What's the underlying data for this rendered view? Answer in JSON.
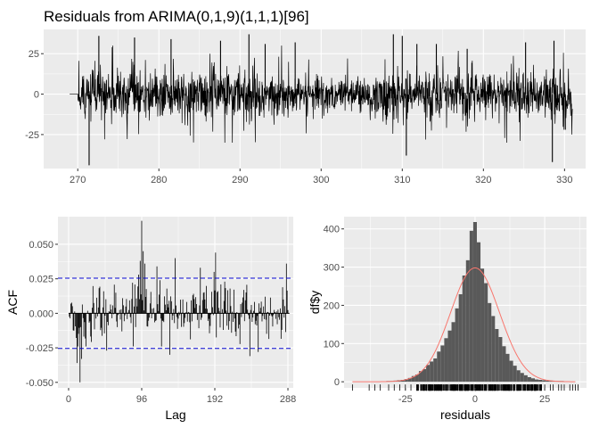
{
  "chart_data": [
    {
      "type": "line",
      "title": "Residuals from ARIMA(0,1,9)(1,1,1)[96]",
      "xlabel": "",
      "ylabel": "",
      "xlim": [
        265.8,
        332.6
      ],
      "ylim": [
        -46,
        40
      ],
      "x_ticks": [
        270,
        280,
        290,
        300,
        310,
        320,
        330
      ],
      "y_ticks": [
        -25,
        0,
        25
      ],
      "x_range": [
        269.0,
        331.0
      ],
      "flat_until": 270.0,
      "grid": true,
      "series_color": "#000000",
      "spikes": [
        {
          "x": 271.4,
          "y": -44
        },
        {
          "x": 272.6,
          "y": 36
        },
        {
          "x": 277.0,
          "y": 35
        },
        {
          "x": 281.5,
          "y": 34
        },
        {
          "x": 287.6,
          "y": 33
        },
        {
          "x": 291.1,
          "y": 37
        },
        {
          "x": 293.1,
          "y": 31
        },
        {
          "x": 296.8,
          "y": 32
        },
        {
          "x": 308.9,
          "y": 37
        },
        {
          "x": 310.0,
          "y": 36
        },
        {
          "x": 310.5,
          "y": -38
        },
        {
          "x": 311.8,
          "y": 31
        },
        {
          "x": 314.2,
          "y": 31
        },
        {
          "x": 318.0,
          "y": 28
        },
        {
          "x": 325.2,
          "y": 32
        },
        {
          "x": 328.5,
          "y": -42
        },
        {
          "x": 328.7,
          "y": 33
        },
        {
          "x": 330.1,
          "y": -22
        }
      ]
    },
    {
      "type": "bar",
      "title": "",
      "xlabel": "Lag",
      "ylabel": "ACF",
      "xlim": [
        -14,
        295
      ],
      "ylim": [
        -0.054,
        0.07
      ],
      "x_ticks": [
        0,
        96,
        192,
        288
      ],
      "y_ticks": [
        -0.05,
        -0.025,
        0.0,
        0.025,
        0.05
      ],
      "y_tick_labels": [
        "-0.050",
        "-0.025",
        "0.000",
        "0.025",
        "0.050"
      ],
      "max_lag": 288,
      "confidence_band": 0.0254,
      "band_color": "#0000cc",
      "grid": true,
      "notable_lags": [
        {
          "lag": 11,
          "acf": -0.036
        },
        {
          "lag": 15,
          "acf": -0.05
        },
        {
          "lag": 17,
          "acf": -0.033
        },
        {
          "lag": 50,
          "acf": -0.027
        },
        {
          "lag": 92,
          "acf": 0.028
        },
        {
          "lag": 94,
          "acf": 0.038
        },
        {
          "lag": 96,
          "acf": 0.067
        },
        {
          "lag": 98,
          "acf": 0.045
        },
        {
          "lag": 100,
          "acf": 0.036
        },
        {
          "lag": 116,
          "acf": 0.034
        },
        {
          "lag": 133,
          "acf": -0.03
        },
        {
          "lag": 140,
          "acf": 0.04
        },
        {
          "lag": 173,
          "acf": 0.033
        },
        {
          "lag": 191,
          "acf": 0.03
        },
        {
          "lag": 193,
          "acf": 0.044
        },
        {
          "lag": 238,
          "acf": -0.031
        },
        {
          "lag": 249,
          "acf": -0.028
        },
        {
          "lag": 286,
          "acf": 0.036
        }
      ]
    },
    {
      "type": "histogram",
      "title": "",
      "xlabel": "residuals",
      "ylabel": "df$y",
      "xlim": [
        -47,
        40
      ],
      "ylim": [
        -16,
        432
      ],
      "x_ticks": [
        -25,
        0,
        25
      ],
      "y_ticks": [
        0,
        100,
        200,
        300,
        400
      ],
      "bin_width": 1.3,
      "bar_color": "#595959",
      "density_curve": {
        "mean": 0,
        "sd": 8.8,
        "peak": 298,
        "color": "#f8766d"
      },
      "bins": [
        {
          "x": -31.2,
          "count": 2
        },
        {
          "x": -29.9,
          "count": 2
        },
        {
          "x": -28.6,
          "count": 3
        },
        {
          "x": -27.3,
          "count": 4
        },
        {
          "x": -26.0,
          "count": 5
        },
        {
          "x": -24.7,
          "count": 7
        },
        {
          "x": -23.4,
          "count": 10
        },
        {
          "x": -22.1,
          "count": 15
        },
        {
          "x": -20.8,
          "count": 19
        },
        {
          "x": -19.5,
          "count": 28
        },
        {
          "x": -18.2,
          "count": 33
        },
        {
          "x": -16.9,
          "count": 44
        },
        {
          "x": -15.6,
          "count": 53
        },
        {
          "x": -14.3,
          "count": 61
        },
        {
          "x": -13.0,
          "count": 79
        },
        {
          "x": -11.7,
          "count": 95
        },
        {
          "x": -10.4,
          "count": 114
        },
        {
          "x": -9.1,
          "count": 134
        },
        {
          "x": -7.8,
          "count": 156
        },
        {
          "x": -6.5,
          "count": 192
        },
        {
          "x": -5.2,
          "count": 229
        },
        {
          "x": -3.9,
          "count": 278
        },
        {
          "x": -2.6,
          "count": 318
        },
        {
          "x": -1.3,
          "count": 395
        },
        {
          "x": 0.0,
          "count": 418
        },
        {
          "x": 1.3,
          "count": 365
        },
        {
          "x": 2.6,
          "count": 296
        },
        {
          "x": 3.9,
          "count": 258
        },
        {
          "x": 5.2,
          "count": 206
        },
        {
          "x": 6.5,
          "count": 172
        },
        {
          "x": 7.8,
          "count": 138
        },
        {
          "x": 9.1,
          "count": 117
        },
        {
          "x": 10.4,
          "count": 93
        },
        {
          "x": 11.7,
          "count": 73
        },
        {
          "x": 13.0,
          "count": 55
        },
        {
          "x": 14.3,
          "count": 42
        },
        {
          "x": 15.6,
          "count": 30
        },
        {
          "x": 16.9,
          "count": 23
        },
        {
          "x": 18.2,
          "count": 17
        },
        {
          "x": 19.5,
          "count": 12
        },
        {
          "x": 20.8,
          "count": 9
        },
        {
          "x": 22.1,
          "count": 6
        },
        {
          "x": 23.4,
          "count": 5
        },
        {
          "x": 24.7,
          "count": 4
        },
        {
          "x": 26.0,
          "count": 3
        },
        {
          "x": 27.3,
          "count": 3
        },
        {
          "x": 28.6,
          "count": 2
        },
        {
          "x": 29.9,
          "count": 2
        },
        {
          "x": 31.2,
          "count": 2
        },
        {
          "x": 32.5,
          "count": 1
        }
      ],
      "rug": {
        "dense_range": [
          -21,
          24
        ],
        "outliers": [
          -44,
          -38,
          -36,
          -34,
          -31,
          -29,
          -27,
          -25,
          -23,
          25,
          27,
          28,
          30,
          31,
          32,
          34,
          35,
          36,
          37
        ]
      }
    }
  ]
}
